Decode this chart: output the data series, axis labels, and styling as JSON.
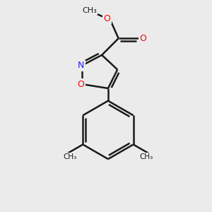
{
  "bg_color": "#ebebeb",
  "bond_color": "#1a1a1a",
  "bond_width": 1.8,
  "atom_colors": {
    "N": "#2020ff",
    "O": "#ff0000",
    "C": "#1a1a1a"
  },
  "fig_size": [
    3.0,
    3.0
  ],
  "dpi": 100,
  "xlim": [
    0,
    10
  ],
  "ylim": [
    0,
    10
  ]
}
